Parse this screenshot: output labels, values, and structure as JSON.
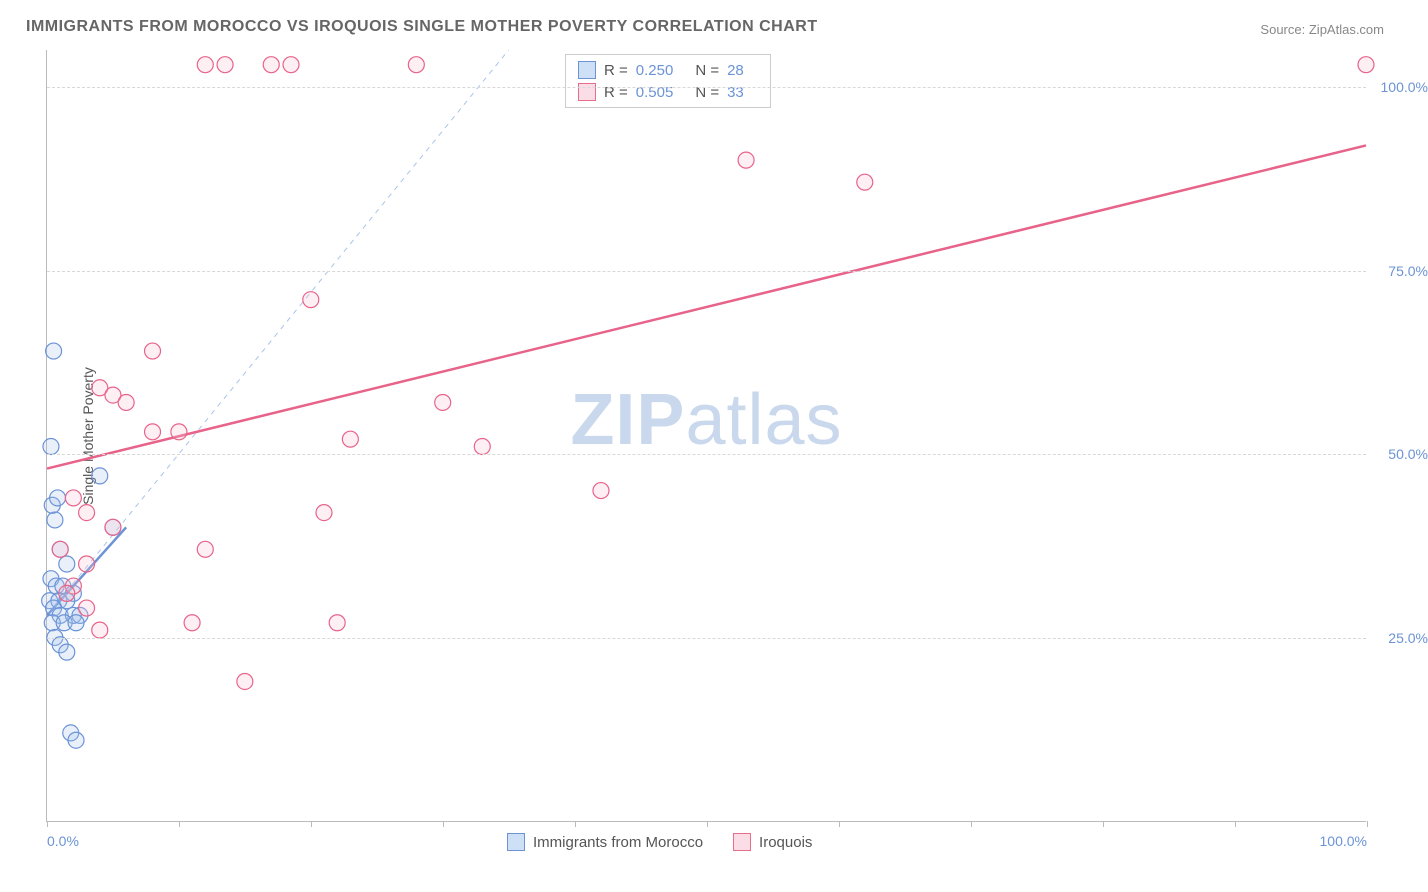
{
  "title": "IMMIGRANTS FROM MOROCCO VS IROQUOIS SINGLE MOTHER POVERTY CORRELATION CHART",
  "source_label": "Source:",
  "source_name": "ZipAtlas.com",
  "y_axis_title": "Single Mother Poverty",
  "watermark": {
    "bold": "ZIP",
    "rest": "atlas"
  },
  "chart": {
    "type": "scatter",
    "xlim": [
      0,
      100
    ],
    "ylim": [
      0,
      105
    ],
    "y_ticks": [
      25,
      50,
      75,
      100
    ],
    "y_tick_labels": [
      "25.0%",
      "50.0%",
      "75.0%",
      "100.0%"
    ],
    "x_ticks": [
      0,
      10,
      20,
      30,
      40,
      50,
      60,
      70,
      80,
      90,
      100
    ],
    "x_tick_labels_shown": {
      "0": "0.0%",
      "100": "100.0%"
    },
    "grid_color": "#d8d8d8",
    "axis_color": "#bbbbbb",
    "background_color": "#ffffff",
    "marker_radius": 8,
    "marker_stroke_width": 1.2,
    "marker_fill_opacity": 0.25,
    "series": [
      {
        "name": "Immigrants from Morocco",
        "color": "#6b93d6",
        "fill": "#a9c4ea",
        "R": "0.250",
        "N": "28",
        "trend": {
          "x1": 0,
          "y1": 28,
          "x2": 6,
          "y2": 40,
          "width": 2.5,
          "dash": "none"
        },
        "trend_ext": {
          "x1": 0,
          "y1": 28,
          "x2": 35,
          "y2": 105,
          "width": 1,
          "dash": "5,5",
          "color": "#a9c4ea"
        },
        "points": [
          [
            0.5,
            64
          ],
          [
            0.3,
            51
          ],
          [
            0.6,
            41
          ],
          [
            0.4,
            43
          ],
          [
            0.8,
            44
          ],
          [
            1.0,
            37
          ],
          [
            1.5,
            35
          ],
          [
            0.3,
            33
          ],
          [
            0.7,
            32
          ],
          [
            1.2,
            32
          ],
          [
            2.0,
            31
          ],
          [
            0.2,
            30
          ],
          [
            0.9,
            30
          ],
          [
            1.5,
            30
          ],
          [
            0.5,
            29
          ],
          [
            1.0,
            28
          ],
          [
            2.0,
            28
          ],
          [
            2.5,
            28
          ],
          [
            0.4,
            27
          ],
          [
            1.3,
            27
          ],
          [
            2.2,
            27
          ],
          [
            0.6,
            25
          ],
          [
            1.0,
            24
          ],
          [
            1.5,
            23
          ],
          [
            1.8,
            12
          ],
          [
            2.2,
            11
          ],
          [
            4.0,
            47
          ],
          [
            5.0,
            40
          ]
        ]
      },
      {
        "name": "Iroquois",
        "color": "#e8638a",
        "fill": "#f7c1d0",
        "R": "0.505",
        "N": "33",
        "trend": {
          "x1": 0,
          "y1": 48,
          "x2": 100,
          "y2": 92,
          "width": 2.5,
          "dash": "none"
        },
        "points": [
          [
            12,
            103
          ],
          [
            13.5,
            103
          ],
          [
            17,
            103
          ],
          [
            18.5,
            103
          ],
          [
            28,
            103
          ],
          [
            100,
            103
          ],
          [
            53,
            90
          ],
          [
            62,
            87
          ],
          [
            20,
            71
          ],
          [
            8,
            64
          ],
          [
            4,
            59
          ],
          [
            5,
            58
          ],
          [
            6,
            57
          ],
          [
            8,
            53
          ],
          [
            10,
            53
          ],
          [
            30,
            57
          ],
          [
            23,
            52
          ],
          [
            33,
            51
          ],
          [
            42,
            45
          ],
          [
            21,
            42
          ],
          [
            2,
            44
          ],
          [
            3,
            42
          ],
          [
            5,
            40
          ],
          [
            12,
            37
          ],
          [
            1,
            37
          ],
          [
            3,
            35
          ],
          [
            2,
            32
          ],
          [
            1.5,
            31
          ],
          [
            3,
            29
          ],
          [
            11,
            27
          ],
          [
            22,
            27
          ],
          [
            15,
            19
          ],
          [
            4,
            26
          ]
        ]
      }
    ]
  },
  "stats_legend": {
    "rows": [
      {
        "swatch_fill": "#cde0f5",
        "swatch_border": "#6b93d6",
        "r_label": "R =",
        "r_val": "0.250",
        "n_label": "N =",
        "n_val": "28"
      },
      {
        "swatch_fill": "#fadde6",
        "swatch_border": "#e86e8a",
        "r_label": "R =",
        "r_val": "0.505",
        "n_label": "N =",
        "n_val": "33"
      }
    ]
  },
  "bottom_legend": {
    "items": [
      {
        "swatch_fill": "#cde0f5",
        "swatch_border": "#6b93d6",
        "label": "Immigrants from Morocco"
      },
      {
        "swatch_fill": "#fadde6",
        "swatch_border": "#e86e8a",
        "label": "Iroquois"
      }
    ]
  }
}
